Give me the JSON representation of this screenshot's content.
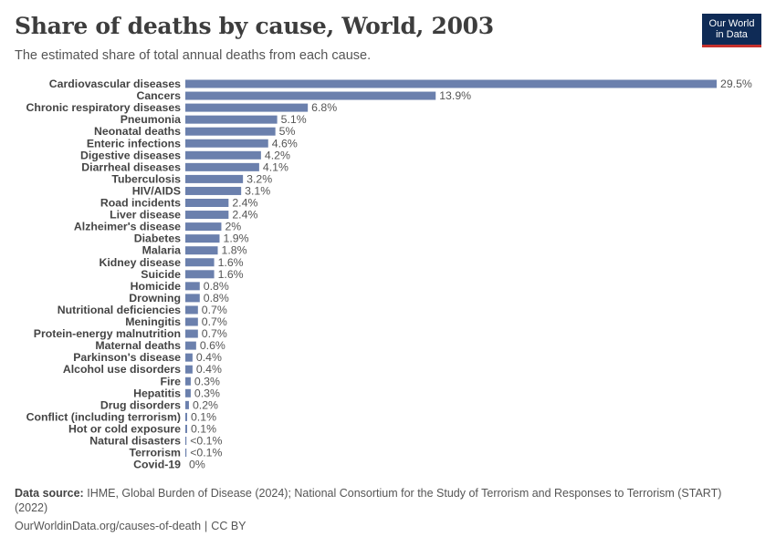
{
  "header": {
    "title": "Share of deaths by cause, World, 2003",
    "subtitle": "The estimated share of total annual deaths from each cause."
  },
  "logo": {
    "line1": "Our World",
    "line2": "in Data"
  },
  "source": {
    "label": "Data source:",
    "text": "IHME, Global Burden of Disease (2024); National Consortium for the Study of Terrorism and Responses to Terrorism (START) (2022)"
  },
  "footer": {
    "url": "OurWorldinData.org/causes-of-death",
    "license": "CC BY"
  },
  "colors": {
    "bar": "#6b80ad",
    "title": "#3d3d3d",
    "logo_bg": "#0f2b56",
    "logo_accent": "#c6312d"
  },
  "chart_data": {
    "type": "bar",
    "orientation": "horizontal",
    "title": "Share of deaths by cause, World, 2003",
    "unit": "%",
    "xlim": [
      0,
      29.5
    ],
    "categories": [
      "Cardiovascular diseases",
      "Cancers",
      "Chronic respiratory diseases",
      "Pneumonia",
      "Neonatal deaths",
      "Enteric infections",
      "Digestive diseases",
      "Diarrheal diseases",
      "Tuberculosis",
      "HIV/AIDS",
      "Road incidents",
      "Liver disease",
      "Alzheimer's disease",
      "Diabetes",
      "Malaria",
      "Kidney disease",
      "Suicide",
      "Homicide",
      "Drowning",
      "Nutritional deficiencies",
      "Meningitis",
      "Protein-energy malnutrition",
      "Maternal deaths",
      "Parkinson's disease",
      "Alcohol use disorders",
      "Fire",
      "Hepatitis",
      "Drug disorders",
      "Conflict (including terrorism)",
      "Hot or cold exposure",
      "Natural disasters",
      "Terrorism",
      "Covid-19"
    ],
    "values": [
      29.5,
      13.9,
      6.8,
      5.1,
      5,
      4.6,
      4.2,
      4.1,
      3.2,
      3.1,
      2.4,
      2.4,
      2,
      1.9,
      1.8,
      1.6,
      1.6,
      0.8,
      0.8,
      0.7,
      0.7,
      0.7,
      0.6,
      0.4,
      0.4,
      0.3,
      0.3,
      0.2,
      0.1,
      0.1,
      0.05,
      0.03,
      0
    ],
    "value_labels": [
      "29.5%",
      "13.9%",
      "6.8%",
      "5.1%",
      "5%",
      "4.6%",
      "4.2%",
      "4.1%",
      "3.2%",
      "3.1%",
      "2.4%",
      "2.4%",
      "2%",
      "1.9%",
      "1.8%",
      "1.6%",
      "1.6%",
      "0.8%",
      "0.8%",
      "0.7%",
      "0.7%",
      "0.7%",
      "0.6%",
      "0.4%",
      "0.4%",
      "0.3%",
      "0.3%",
      "0.2%",
      "0.1%",
      "0.1%",
      "<0.1%",
      "<0.1%",
      "0%"
    ]
  }
}
